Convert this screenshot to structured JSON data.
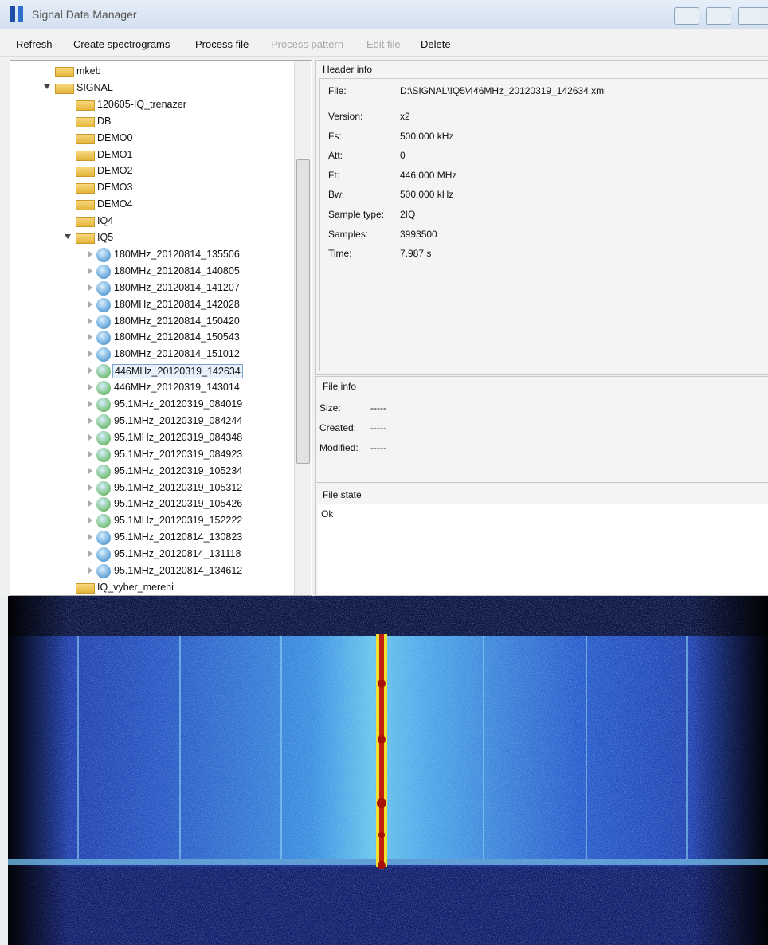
{
  "window": {
    "title": "Signal Data Manager"
  },
  "menu": [
    "Refresh",
    "Create spectrograms",
    "Process file",
    "Process pattern",
    "Edit file",
    "Delete"
  ],
  "tree": [
    "mkeb",
    "SIGNAL",
    "120605-IQ_trenazer",
    "DB",
    "DEMO0",
    "DEMO1",
    "DEMO2",
    "DEMO3",
    "DEMO4",
    "IQ4",
    "IQ5",
    "180MHz_20120814_135506",
    "180MHz_20120814_140805",
    "180MHz_20120814_141207",
    "180MHz_20120814_142028",
    "180MHz_20120814_150420",
    "180MHz_20120814_150543",
    "180MHz_20120814_151012",
    "446MHz_20120319_142634",
    "446MHz_20120319_143014",
    "95.1MHz_20120319_084019",
    "95.1MHz_20120319_084244",
    "95.1MHz_20120319_084348",
    "95.1MHz_20120319_084923",
    "95.1MHz_20120319_105234",
    "95.1MHz_20120319_105312",
    "95.1MHz_20120319_105426",
    "95.1MHz_20120319_152222",
    "95.1MHz_20120814_130823",
    "95.1MHz_20120814_131118",
    "95.1MHz_20120814_134612",
    "IQ_vyber_mereni"
  ],
  "header_info": {
    "title": "Header info",
    "fields": [
      [
        "File:",
        "D:\\SIGNAL\\IQ5\\446MHz_20120319_142634.xml"
      ],
      [
        "Version:",
        "x2"
      ],
      [
        "Fs:",
        "500.000 kHz"
      ],
      [
        "Att:",
        "0"
      ],
      [
        "Ft:",
        "446.000 MHz"
      ],
      [
        "Bw:",
        "500.000 kHz"
      ],
      [
        "Sample type:",
        "2IQ"
      ],
      [
        "Samples:",
        "3993500"
      ],
      [
        "Time:",
        "7.987  s"
      ]
    ]
  },
  "file_info": {
    "title": "File info",
    "fields": [
      [
        "Size:",
        "-----"
      ],
      [
        "Created:",
        "-----"
      ],
      [
        "Modified:",
        "-----"
      ]
    ]
  },
  "file_state": {
    "title": "File state",
    "text": "Ok"
  }
}
